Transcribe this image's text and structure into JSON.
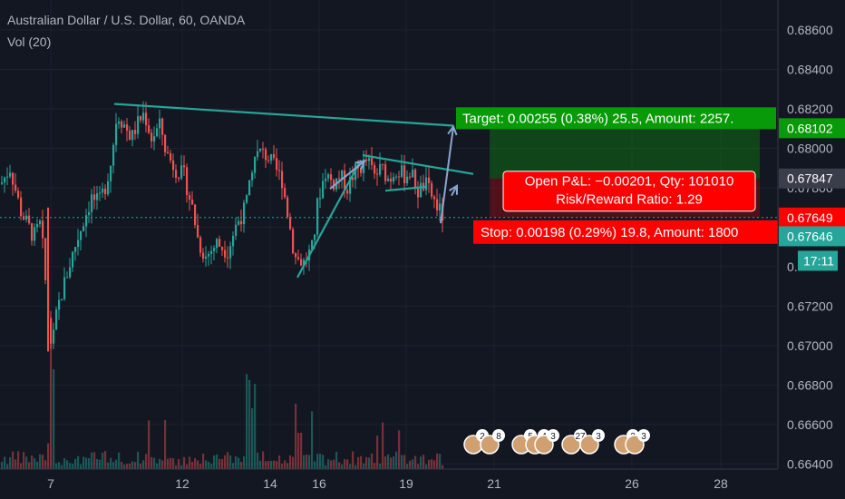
{
  "legend": {
    "symbol": "Australian Dollar / U.S. Dollar, 60, OANDA",
    "volume": "Vol (20)"
  },
  "colors": {
    "background": "#131722",
    "up": "#26a69a",
    "down": "#ef5350",
    "trendline": "#26a69a",
    "arrow": "#8aa6cf",
    "axis_text": "#b2b5be",
    "target_box": "#089a08",
    "stop_box": "#ff0000"
  },
  "chart_data": {
    "type": "candlestick",
    "y_axis": {
      "range": [
        0.6636,
        0.6866
      ],
      "tick_labels": [
        "0.68600",
        "0.68400",
        "0.68200",
        "0.68000",
        "0.67800",
        "0.67600",
        "0.67400",
        "0.67200",
        "0.67000",
        "0.66800",
        "0.66600",
        "0.66400"
      ]
    },
    "x_axis": {
      "tick_labels": [
        "7",
        "12",
        "14",
        "16",
        "19",
        "21",
        "26",
        "28"
      ]
    },
    "ohlc_path": [
      [
        0,
        0.6782
      ],
      [
        10,
        0.679
      ],
      [
        22,
        0.6768
      ],
      [
        36,
        0.6755
      ],
      [
        44,
        0.6762
      ],
      [
        52,
        0.6715
      ],
      [
        56,
        0.6698
      ],
      [
        62,
        0.6718
      ],
      [
        72,
        0.6735
      ],
      [
        80,
        0.6748
      ],
      [
        90,
        0.6762
      ],
      [
        100,
        0.6775
      ],
      [
        108,
        0.6772
      ],
      [
        116,
        0.6782
      ],
      [
        122,
        0.6795
      ],
      [
        128,
        0.6818
      ],
      [
        136,
        0.6812
      ],
      [
        144,
        0.6805
      ],
      [
        150,
        0.6812
      ],
      [
        158,
        0.6818
      ],
      [
        166,
        0.6805
      ],
      [
        176,
        0.6812
      ],
      [
        182,
        0.6798
      ],
      [
        192,
        0.679
      ],
      [
        202,
        0.6786
      ],
      [
        212,
        0.6768
      ],
      [
        218,
        0.6752
      ],
      [
        226,
        0.6745
      ],
      [
        238,
        0.6752
      ],
      [
        250,
        0.6748
      ],
      [
        260,
        0.6762
      ],
      [
        270,
        0.677
      ],
      [
        278,
        0.6795
      ],
      [
        286,
        0.6798
      ],
      [
        294,
        0.6796
      ],
      [
        302,
        0.679
      ],
      [
        310,
        0.6784
      ],
      [
        318,
        0.6762
      ],
      [
        324,
        0.6745
      ],
      [
        334,
        0.6742
      ],
      [
        344,
        0.675
      ],
      [
        350,
        0.6775
      ],
      [
        358,
        0.6788
      ],
      [
        366,
        0.6782
      ],
      [
        374,
        0.6786
      ],
      [
        382,
        0.678
      ],
      [
        390,
        0.6788
      ],
      [
        396,
        0.679
      ],
      [
        404,
        0.6794
      ],
      [
        412,
        0.6786
      ],
      [
        420,
        0.679
      ],
      [
        428,
        0.6784
      ],
      [
        436,
        0.679
      ],
      [
        444,
        0.6786
      ],
      [
        452,
        0.6788
      ],
      [
        460,
        0.6778
      ],
      [
        468,
        0.6782
      ],
      [
        476,
        0.6775
      ],
      [
        484,
        0.6768
      ],
      [
        488,
        0.6765
      ]
    ],
    "trendlines": [
      {
        "name": "upper",
        "p1": [
          126,
          0.68225
        ],
        "p2": [
          500,
          0.68115
        ]
      },
      {
        "name": "support",
        "p1": [
          328,
          0.67345
        ],
        "p2": [
          398,
          0.6794
        ]
      },
      {
        "name": "wedge-top",
        "p1": [
          400,
          0.67965
        ],
        "p2": [
          522,
          0.6787
        ]
      },
      {
        "name": "wedge-bottom",
        "p1": [
          425,
          0.67785
        ],
        "p2": [
          470,
          0.67805
        ]
      }
    ],
    "arrows": [
      {
        "name": "arrow-1",
        "from": [
          364,
          0.67795
        ],
        "to": [
          402,
          0.67935
        ]
      },
      {
        "name": "arrow-2",
        "from": [
          486,
          0.6762
        ],
        "to": [
          500,
          0.6811
        ]
      },
      {
        "name": "arrow-3",
        "from": [
          498,
          0.6776
        ],
        "to": [
          504,
          0.6781
        ]
      }
    ],
    "position": {
      "entry": 0.67847,
      "target": 0.68102,
      "stop": 0.67649,
      "current": 0.67646,
      "target_label": "Target: 0.00255 (0.38%) 25.5, Amount: 2257.",
      "pnl_label": "Open P&L: −0.00201, Qty: 101010",
      "rr_label": "Risk/Reward Ratio: 1.29",
      "stop_label": "Stop: 0.00198 (0.29%) 19.8, Amount: 1800",
      "axis_labels": {
        "target": "0.68102",
        "entry": "0.67847",
        "stop": "0.67649",
        "current": "0.67646",
        "countdown": "17:11"
      },
      "hidden_axis_label": "0."
    },
    "events": [
      {
        "x": 522,
        "count": "2"
      },
      {
        "x": 540,
        "count": "8"
      },
      {
        "x": 575,
        "count": "5"
      },
      {
        "x": 590,
        "count": "4"
      },
      {
        "x": 600,
        "count": "3"
      },
      {
        "x": 630,
        "count": "27"
      },
      {
        "x": 650,
        "count": "3"
      },
      {
        "x": 688,
        "count": "2"
      },
      {
        "x": 700,
        "count": "3"
      }
    ]
  }
}
